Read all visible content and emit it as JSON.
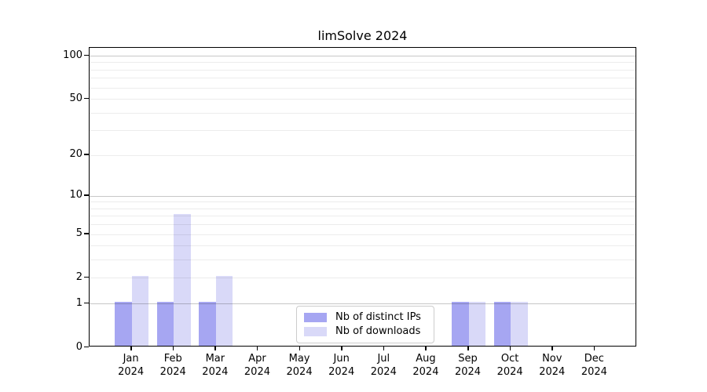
{
  "page": {
    "title": "limSolve 2024"
  },
  "chart_data": {
    "type": "bar",
    "title": "limSolve 2024",
    "categories": [
      "Jan",
      "Feb",
      "Mar",
      "Apr",
      "May",
      "Jun",
      "Jul",
      "Aug",
      "Sep",
      "Oct",
      "Nov",
      "Dec"
    ],
    "year_label": "2024",
    "series": [
      {
        "name": "Nb of distinct IPs",
        "color": "#a6a6f2",
        "values": [
          1,
          1,
          1,
          0,
          0,
          0,
          0,
          0,
          1,
          1,
          0,
          0
        ]
      },
      {
        "name": "Nb of downloads",
        "color": "#d9d9f8",
        "values": [
          2,
          7,
          2,
          0,
          0,
          0,
          0,
          0,
          1,
          1,
          0,
          0
        ]
      }
    ],
    "xlabel": "",
    "ylabel": "",
    "yscale": "log1p",
    "ylim": [
      0,
      113
    ],
    "y_major_ticks": [
      0,
      1,
      2,
      5,
      10,
      20,
      50,
      100
    ],
    "y_decade_gridlines": [
      1,
      10,
      100
    ],
    "y_minor_gridlines": [
      3,
      4,
      6,
      7,
      8,
      9,
      30,
      40,
      60,
      70,
      80,
      90
    ],
    "grid": true,
    "legend_position": "bottom-center"
  },
  "colors": {
    "background": "#ffffff",
    "axis": "#000000",
    "text": "#000000",
    "grid_major": "#c4c4c4",
    "grid_minor": "#ececec",
    "legend_border": "#cccccc",
    "series_dark": "#a6a6f2",
    "series_light": "#d9d9f8"
  }
}
